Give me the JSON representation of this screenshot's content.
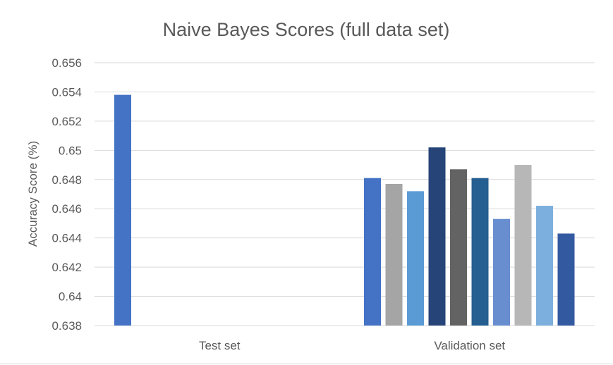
{
  "chart_data": {
    "type": "bar",
    "title": "Naive Bayes Scores (full data set)",
    "xlabel": "",
    "ylabel": "Accuracy Score (%)",
    "ylim": [
      0.638,
      0.656
    ],
    "yticks": [
      "0.638",
      "0.64",
      "0.642",
      "0.644",
      "0.646",
      "0.648",
      "0.65",
      "0.652",
      "0.654",
      "0.656"
    ],
    "grid": true,
    "legend": "none",
    "categories": [
      "Test set",
      "Validation set"
    ],
    "groups": [
      {
        "category": "Test set",
        "bars": [
          {
            "value": 0.6538,
            "color": "#4472c4"
          }
        ]
      },
      {
        "category": "Validation set",
        "bars": [
          {
            "value": 0.6481,
            "color": "#4472c4"
          },
          {
            "value": 0.6477,
            "color": "#a5a5a5"
          },
          {
            "value": 0.6472,
            "color": "#5b9bd5"
          },
          {
            "value": 0.6502,
            "color": "#264478"
          },
          {
            "value": 0.6487,
            "color": "#636363"
          },
          {
            "value": 0.6481,
            "color": "#255e91"
          },
          {
            "value": 0.6453,
            "color": "#698ed0"
          },
          {
            "value": 0.649,
            "color": "#b7b7b7"
          },
          {
            "value": 0.6462,
            "color": "#7cafdd"
          },
          {
            "value": 0.6443,
            "color": "#335aa1"
          }
        ]
      }
    ]
  }
}
